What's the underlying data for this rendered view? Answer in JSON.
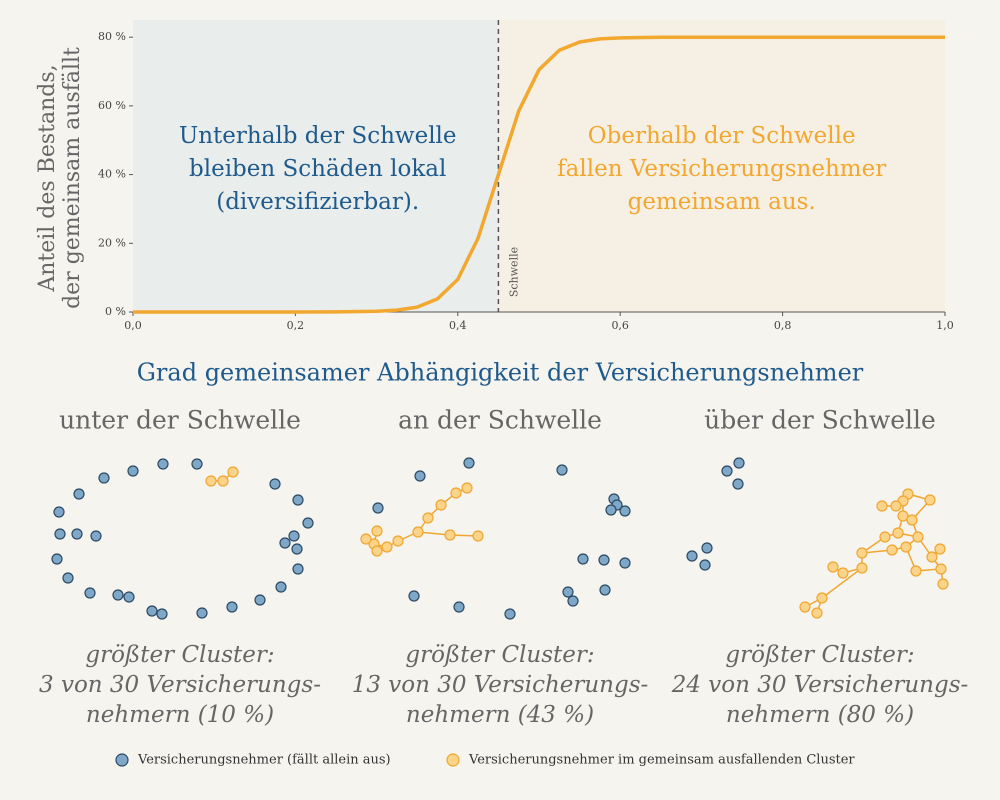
{
  "chart_data": {
    "type": "line",
    "y_label": [
      "Anteil des Bestands,",
      "der gemeinsam ausfällt"
    ],
    "x_label": "Grad gemeinsamer Abhängigkeit der Versicherungsnehmer",
    "x": [
      0,
      0.1,
      0.2,
      0.25,
      0.3,
      0.325,
      0.35,
      0.375,
      0.4,
      0.425,
      0.45,
      0.475,
      0.5,
      0.525,
      0.55,
      0.575,
      0.6,
      0.65,
      0.7,
      0.8,
      0.9,
      1.0
    ],
    "values": [
      0,
      0,
      0,
      0.03,
      0.2,
      0.54,
      1.44,
      3.8,
      9.5,
      21.5,
      40,
      58.5,
      70.5,
      76.2,
      78.6,
      79.5,
      79.8,
      80,
      80,
      80,
      80,
      80
    ],
    "color": "#f2a72e",
    "xlim": [
      0,
      1
    ],
    "ylim": [
      0,
      85
    ],
    "xticks": [
      {
        "value": 0,
        "label": "0,0"
      },
      {
        "value": 0.2,
        "label": "0,2"
      },
      {
        "value": 0.4,
        "label": "0,4"
      },
      {
        "value": 0.6,
        "label": "0,6"
      },
      {
        "value": 0.8,
        "label": "0,8"
      },
      {
        "value": 1,
        "label": "1,0"
      }
    ],
    "yticks": [
      {
        "value": 0,
        "label": "0 %"
      },
      {
        "value": 20,
        "label": "20 %"
      },
      {
        "value": 40,
        "label": "40 %"
      },
      {
        "value": 60,
        "label": "60 %"
      },
      {
        "value": 80,
        "label": "80 %"
      }
    ],
    "threshold": {
      "value": 0.45,
      "label": "Schwelle"
    },
    "regions": {
      "below": "#e9edec",
      "above": "#f6efe3"
    },
    "annotations": [
      {
        "lines": [
          "Unterhalb der Schwelle",
          "bleiben Schäden lokal",
          "(diversifizierbar)."
        ],
        "color": "#1f5a8c"
      },
      {
        "lines": [
          "Oberhalb der Schwelle",
          "fallen Versicherungsnehmer",
          "gemeinsam aus."
        ],
        "color": "#f2a72e"
      }
    ]
  },
  "networks": {
    "panels": [
      {
        "title": "unter der Schwelle",
        "caption": [
          "größter Cluster:",
          "3 von 30 Versicherungs-",
          "nehmern (10 %)"
        ]
      },
      {
        "title": "an der Schwelle",
        "caption": [
          "größter Cluster:",
          "13 von 30 Versicherungs-",
          "nehmern (43 %)"
        ]
      },
      {
        "title": "über der Schwelle",
        "caption": [
          "größter Cluster:",
          "24 von 30 Versicherungs-",
          "nehmern (80 %)"
        ]
      }
    ],
    "legend": [
      {
        "label": "Versicherungsnehmer (fällt allein aus)",
        "color": "#7fa8c8"
      },
      {
        "label": "Versicherungsnehmer im gemeinsam ausfallenden Cluster",
        "color": "#fbd48a"
      }
    ]
  }
}
